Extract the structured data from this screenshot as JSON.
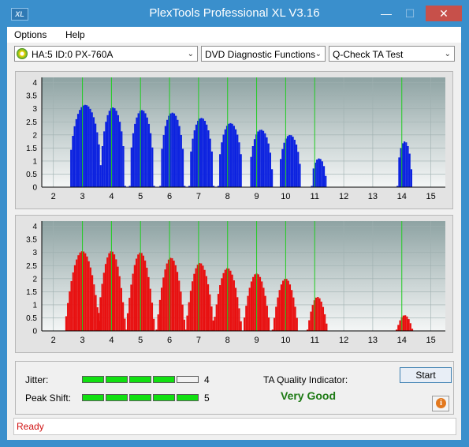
{
  "window": {
    "title": "PlexTools Professional XL V3.16",
    "app_icon_text": "XL",
    "min_glyph": "—",
    "max_glyph": "☐",
    "close_glyph": "✕"
  },
  "menu": {
    "items": [
      {
        "label": "Options"
      },
      {
        "label": "Help"
      }
    ]
  },
  "toolbar": {
    "drive": "HA:5 ID:0  PX-760A",
    "function": "DVD Diagnostic Functions",
    "test": "Q-Check TA Test",
    "arrow": "⌄"
  },
  "chart_data": [
    {
      "type": "bar",
      "name": "top",
      "color": "#0c22e0",
      "x_ticks": [
        "2",
        "3",
        "4",
        "5",
        "6",
        "7",
        "8",
        "9",
        "10",
        "11",
        "12",
        "13",
        "14",
        "15"
      ],
      "y_ticks": [
        "0",
        "0.5",
        "1",
        "1.5",
        "2",
        "2.5",
        "3",
        "3.5",
        "4"
      ],
      "xlim": [
        1.6,
        15.5
      ],
      "ylim": [
        0,
        4.2
      ],
      "marker_lines_at": [
        3,
        4,
        5,
        6,
        7,
        8,
        9,
        10,
        11,
        14
      ],
      "peaks": [
        {
          "center": 3.1,
          "height": 3.15,
          "half_width": 0.55,
          "shape": "dome"
        },
        {
          "center": 4.05,
          "height": 3.05,
          "half_width": 0.42,
          "shape": "dome"
        },
        {
          "center": 5.05,
          "height": 2.95,
          "half_width": 0.42,
          "shape": "dome"
        },
        {
          "center": 6.1,
          "height": 2.85,
          "half_width": 0.42,
          "shape": "dome"
        },
        {
          "center": 7.1,
          "height": 2.65,
          "half_width": 0.42,
          "shape": "dome"
        },
        {
          "center": 8.1,
          "height": 2.45,
          "half_width": 0.42,
          "shape": "dome"
        },
        {
          "center": 9.15,
          "height": 2.2,
          "half_width": 0.4,
          "shape": "dome"
        },
        {
          "center": 10.15,
          "height": 2.0,
          "half_width": 0.38,
          "shape": "dome"
        },
        {
          "center": 11.15,
          "height": 1.1,
          "half_width": 0.25,
          "shape": "dome"
        },
        {
          "center": 14.1,
          "height": 1.75,
          "half_width": 0.25,
          "shape": "dome"
        }
      ]
    },
    {
      "type": "bar",
      "name": "bottom",
      "color": "#e81010",
      "x_ticks": [
        "2",
        "3",
        "4",
        "5",
        "6",
        "7",
        "8",
        "9",
        "10",
        "11",
        "12",
        "13",
        "14",
        "15"
      ],
      "y_ticks": [
        "0",
        "0.5",
        "1",
        "1.5",
        "2",
        "2.5",
        "3",
        "3.5",
        "4"
      ],
      "xlim": [
        1.6,
        15.5
      ],
      "ylim": [
        0,
        4.2
      ],
      "marker_lines_at": [
        3,
        4,
        5,
        6,
        7,
        8,
        9,
        10,
        11,
        14
      ],
      "peaks": [
        {
          "center": 3.0,
          "height": 3.05,
          "half_width": 0.62,
          "shape": "bell"
        },
        {
          "center": 4.0,
          "height": 3.05,
          "half_width": 0.5,
          "shape": "bell"
        },
        {
          "center": 5.0,
          "height": 3.0,
          "half_width": 0.5,
          "shape": "bell"
        },
        {
          "center": 6.05,
          "height": 2.8,
          "half_width": 0.5,
          "shape": "bell"
        },
        {
          "center": 7.05,
          "height": 2.6,
          "half_width": 0.5,
          "shape": "bell"
        },
        {
          "center": 8.0,
          "height": 2.4,
          "half_width": 0.5,
          "shape": "bell"
        },
        {
          "center": 9.0,
          "height": 2.2,
          "half_width": 0.48,
          "shape": "bell"
        },
        {
          "center": 10.0,
          "height": 2.0,
          "half_width": 0.45,
          "shape": "bell"
        },
        {
          "center": 11.1,
          "height": 1.3,
          "half_width": 0.35,
          "shape": "bell"
        },
        {
          "center": 14.1,
          "height": 0.6,
          "half_width": 0.28,
          "shape": "bell"
        }
      ]
    }
  ],
  "status": {
    "jitter_label": "Jitter:",
    "jitter_value": "4",
    "jitter_level": 4,
    "peak_shift_label": "Peak Shift:",
    "peak_shift_value": "5",
    "peak_shift_level": 5,
    "meter_max": 5,
    "ta_label": "TA Quality Indicator:",
    "ta_value": "Very Good",
    "start_label": "Start",
    "info_glyph": "i"
  },
  "statusbar": {
    "text": "Ready"
  },
  "colors": {
    "titlebar": "#3a8fcc",
    "meter_on": "#11e011",
    "quality": "#1d7a14",
    "status_text": "#d01010"
  }
}
